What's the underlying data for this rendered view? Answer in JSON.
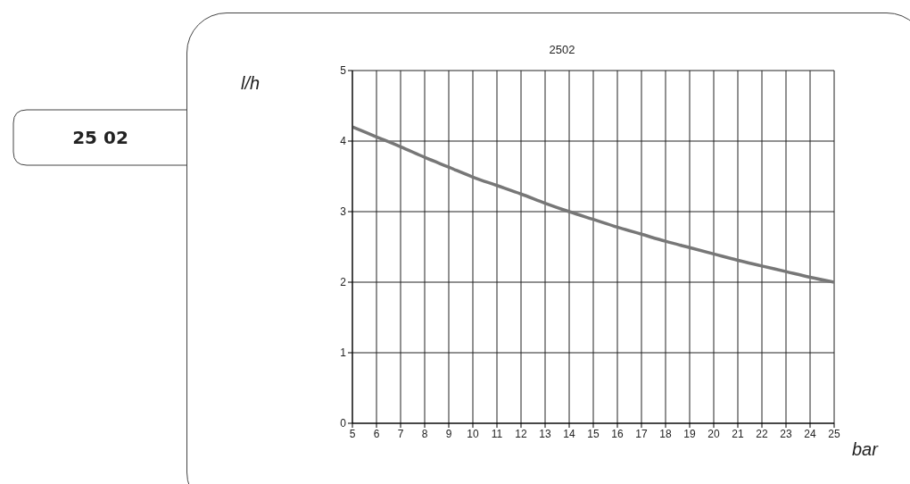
{
  "chart_data": {
    "type": "line",
    "title": "2502",
    "xlabel": "bar",
    "ylabel": "l/h",
    "annotations": [
      "25 02"
    ],
    "x": [
      5,
      6,
      7,
      8,
      9,
      10,
      11,
      12,
      13,
      14,
      15,
      16,
      17,
      18,
      19,
      20,
      21,
      22,
      23,
      24,
      25
    ],
    "series": [
      {
        "color": "#777777",
        "values": [
          4.2,
          4.06,
          3.92,
          3.77,
          3.63,
          3.49,
          3.37,
          3.25,
          3.12,
          3.0,
          2.89,
          2.78,
          2.68,
          2.58,
          2.49,
          2.4,
          2.31,
          2.23,
          2.15,
          2.07,
          2.0
        ]
      }
    ],
    "xlim": [
      5,
      25
    ],
    "xticks": [
      5,
      6,
      7,
      8,
      9,
      10,
      11,
      12,
      13,
      14,
      15,
      16,
      17,
      18,
      19,
      20,
      21,
      22,
      23,
      24,
      25
    ],
    "ylim": [
      0,
      5
    ],
    "yticks": [
      0,
      1,
      2,
      3,
      4,
      5
    ],
    "grid": true,
    "legend": false,
    "marker": "none",
    "line_style": "solid"
  }
}
